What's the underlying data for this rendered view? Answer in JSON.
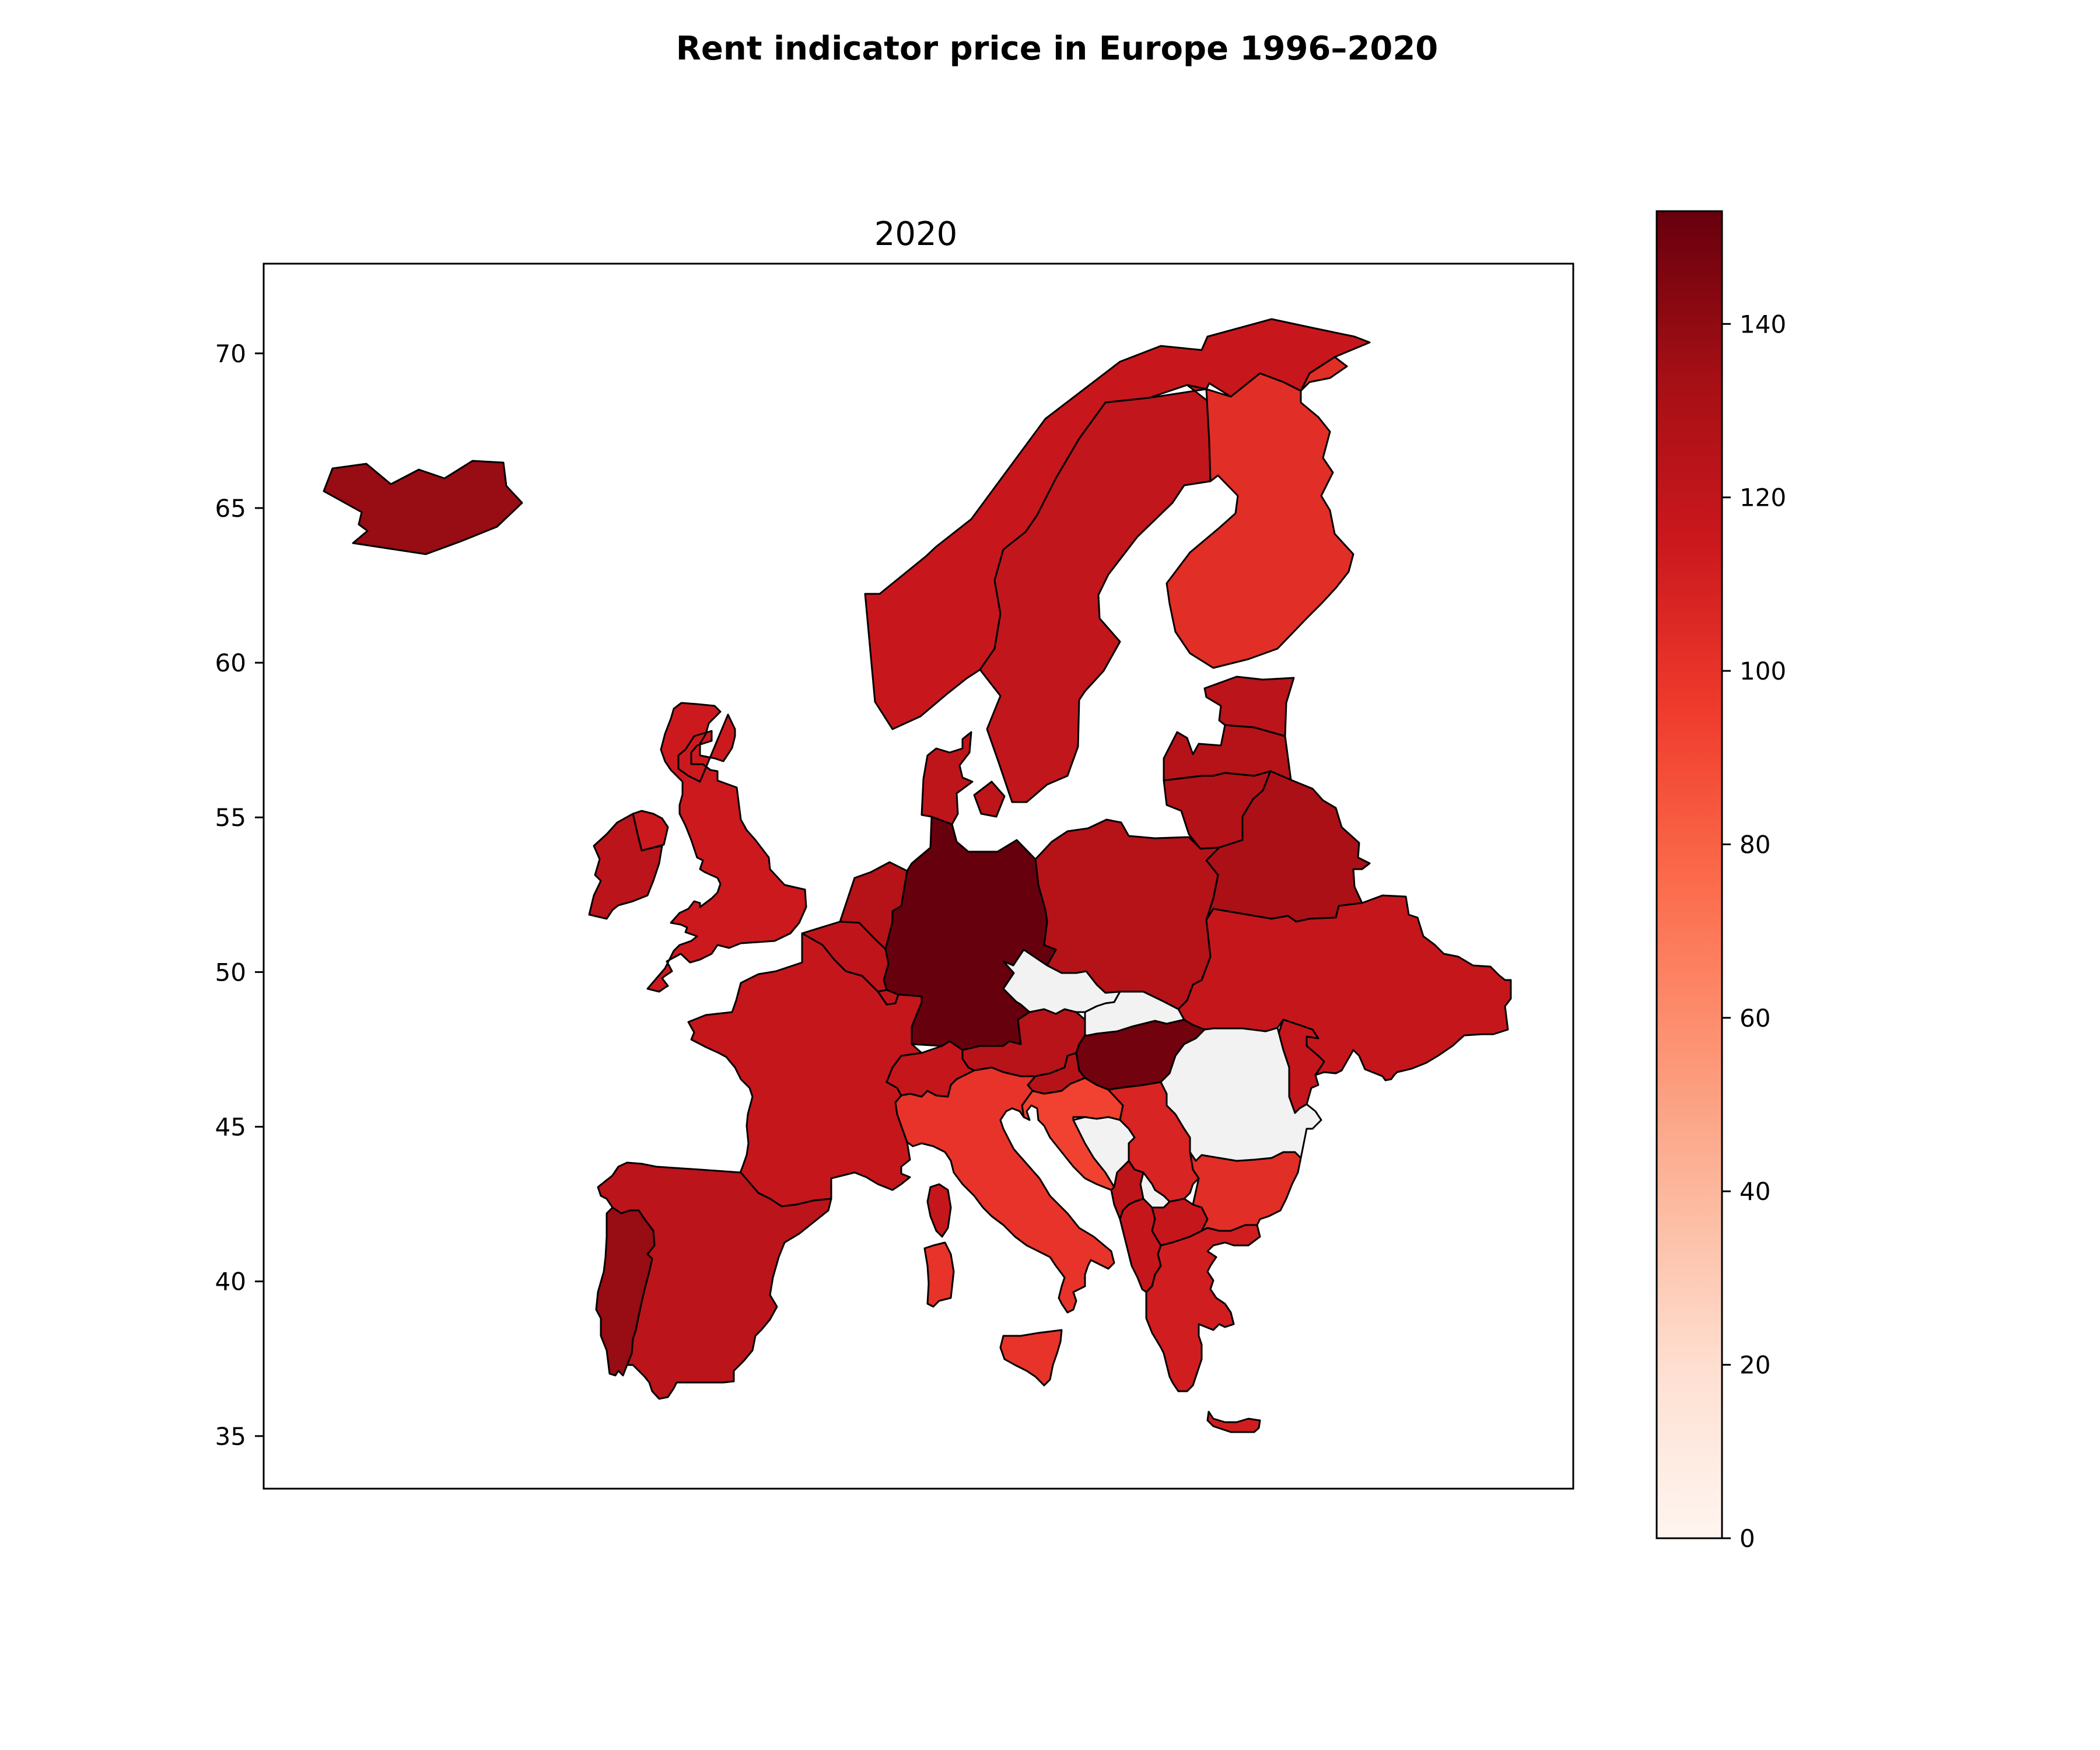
{
  "chart_data": {
    "type": "choropleth",
    "title": "Rent indicator price in Europe 1996–2020",
    "subplot_title": "2020",
    "xlabel": "",
    "ylabel": "",
    "ylim": [
      33.3,
      72.9
    ],
    "y_ticks": [
      35,
      40,
      45,
      50,
      55,
      60,
      65,
      70
    ],
    "colormap": "Reds",
    "colorbar": {
      "range": [
        0,
        153
      ],
      "ticks": [
        0,
        20,
        40,
        60,
        80,
        100,
        120,
        140
      ],
      "colors": [
        "#fff5f0",
        "#fee0d2",
        "#fcbba1",
        "#fc9272",
        "#fb6a4a",
        "#ef3b2c",
        "#cb181d",
        "#a50f15",
        "#67000d"
      ]
    },
    "no_data_color": "#f2f2f2",
    "regions": [
      {
        "name": "Iceland",
        "value": 138
      },
      {
        "name": "Norway",
        "value": 117
      },
      {
        "name": "Sweden",
        "value": 120
      },
      {
        "name": "Finland",
        "value": 103
      },
      {
        "name": "Estonia",
        "value": 123
      },
      {
        "name": "Latvia",
        "value": 126
      },
      {
        "name": "Lithuania",
        "value": 127
      },
      {
        "name": "Belarus",
        "value": 131
      },
      {
        "name": "Ukraine",
        "value": 118
      },
      {
        "name": "Poland",
        "value": 126
      },
      {
        "name": "Germany",
        "value": 153
      },
      {
        "name": "Denmark",
        "value": 122
      },
      {
        "name": "Netherlands",
        "value": 126
      },
      {
        "name": "Belgium",
        "value": 121
      },
      {
        "name": "Luxembourg",
        "value": 121
      },
      {
        "name": "United Kingdom",
        "value": 114
      },
      {
        "name": "Ireland",
        "value": 123
      },
      {
        "name": "France",
        "value": 118
      },
      {
        "name": "Spain",
        "value": 123
      },
      {
        "name": "Portugal",
        "value": 138
      },
      {
        "name": "Switzerland",
        "value": 118
      },
      {
        "name": "Austria",
        "value": 125
      },
      {
        "name": "Italy",
        "value": 100
      },
      {
        "name": "Hungary",
        "value": 150
      },
      {
        "name": "Slovenia",
        "value": 126
      },
      {
        "name": "Croatia",
        "value": 93
      },
      {
        "name": "Bulgaria",
        "value": 103
      },
      {
        "name": "Serbia",
        "value": 108
      },
      {
        "name": "Montenegro",
        "value": 122
      },
      {
        "name": "Albania",
        "value": 118
      },
      {
        "name": "North Macedonia",
        "value": 118
      },
      {
        "name": "Greece",
        "value": 112
      },
      {
        "name": "Cyprus",
        "value": 113
      },
      {
        "name": "Moldova",
        "value": 118
      },
      {
        "name": "Czechia",
        "value": null
      },
      {
        "name": "Slovakia",
        "value": null
      },
      {
        "name": "Romania",
        "value": null
      },
      {
        "name": "Bosnia and Herzegovina",
        "value": null
      },
      {
        "name": "Kosovo",
        "value": null
      }
    ]
  }
}
